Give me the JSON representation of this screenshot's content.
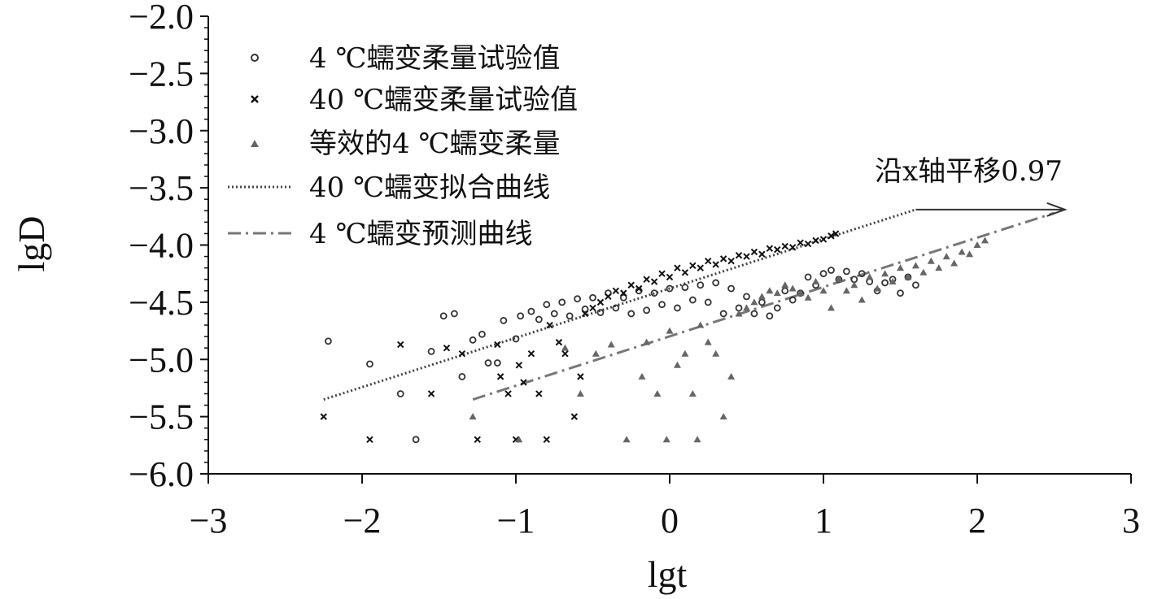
{
  "chart_data": {
    "type": "scatter",
    "xlabel": "lgt",
    "ylabel": "lgD",
    "xlim": [
      -3,
      3
    ],
    "ylim": [
      -6.0,
      -2.0
    ],
    "xticks": [
      -3,
      -2,
      -1,
      0,
      1,
      2,
      3
    ],
    "yticks": [
      -2.0,
      -2.5,
      -3.0,
      -3.5,
      -4.0,
      -4.5,
      -5.0,
      -5.5,
      -6.0
    ],
    "xtick_labels": [
      "−3",
      "−2",
      "−1",
      "0",
      "1",
      "2",
      "3"
    ],
    "ytick_labels": [
      "−2.0",
      "−2.5",
      "−3.0",
      "−3.5",
      "−4.0",
      "−4.5",
      "−5.0",
      "−5.5",
      "−6.0"
    ],
    "grid": false,
    "legend_position": "top-left",
    "legend": [
      {
        "label": "4 ℃蠕变柔量试验值",
        "marker": "circle"
      },
      {
        "label": "40 ℃蠕变柔量试验值",
        "marker": "x"
      },
      {
        "label": "等效的4 ℃蠕变柔量",
        "marker": "triangle"
      },
      {
        "label": "40 ℃蠕变拟合曲线",
        "marker": "dotted-line"
      },
      {
        "label": "4 ℃蠕变预测曲线",
        "marker": "dashdot-line"
      }
    ],
    "series": [
      {
        "name": "4 ℃蠕变柔量试验值",
        "marker": "circle",
        "color": "#333333",
        "points": [
          [
            -2.22,
            -4.84
          ],
          [
            -1.95,
            -5.04
          ],
          [
            -1.75,
            -5.3
          ],
          [
            -1.65,
            -5.7
          ],
          [
            -1.55,
            -4.93
          ],
          [
            -1.47,
            -4.62
          ],
          [
            -1.4,
            -4.6
          ],
          [
            -1.35,
            -5.15
          ],
          [
            -1.28,
            -4.83
          ],
          [
            -1.22,
            -4.78
          ],
          [
            -1.18,
            -5.03
          ],
          [
            -1.12,
            -5.03
          ],
          [
            -1.08,
            -4.66
          ],
          [
            -1.0,
            -4.82
          ],
          [
            -0.97,
            -4.62
          ],
          [
            -0.9,
            -4.58
          ],
          [
            -0.85,
            -4.65
          ],
          [
            -0.8,
            -4.52
          ],
          [
            -0.75,
            -4.6
          ],
          [
            -0.7,
            -4.5
          ],
          [
            -0.65,
            -4.62
          ],
          [
            -0.6,
            -4.47
          ],
          [
            -0.55,
            -4.56
          ],
          [
            -0.5,
            -4.46
          ],
          [
            -0.45,
            -4.59
          ],
          [
            -0.4,
            -4.42
          ],
          [
            -0.35,
            -4.55
          ],
          [
            -0.3,
            -4.46
          ],
          [
            -0.25,
            -4.6
          ],
          [
            -0.2,
            -4.4
          ],
          [
            -0.15,
            -4.57
          ],
          [
            -0.1,
            -4.42
          ],
          [
            -0.05,
            -4.52
          ],
          [
            0.0,
            -4.38
          ],
          [
            0.05,
            -4.55
          ],
          [
            0.1,
            -4.37
          ],
          [
            0.15,
            -4.48
          ],
          [
            0.2,
            -4.35
          ],
          [
            0.25,
            -4.5
          ],
          [
            0.3,
            -4.33
          ],
          [
            0.35,
            -4.6
          ],
          [
            0.4,
            -4.38
          ],
          [
            0.45,
            -4.55
          ],
          [
            0.5,
            -4.45
          ],
          [
            0.55,
            -4.6
          ],
          [
            0.6,
            -4.5
          ],
          [
            0.65,
            -4.62
          ],
          [
            0.7,
            -4.55
          ],
          [
            0.75,
            -4.4
          ],
          [
            0.8,
            -4.48
          ],
          [
            0.85,
            -4.42
          ],
          [
            0.9,
            -4.28
          ],
          [
            0.95,
            -4.35
          ],
          [
            1.0,
            -4.25
          ],
          [
            1.05,
            -4.22
          ],
          [
            1.1,
            -4.3
          ],
          [
            1.15,
            -4.23
          ],
          [
            1.2,
            -4.3
          ],
          [
            1.25,
            -4.25
          ],
          [
            1.3,
            -4.32
          ],
          [
            1.35,
            -4.4
          ],
          [
            1.4,
            -4.33
          ],
          [
            1.45,
            -4.3
          ],
          [
            1.5,
            -4.42
          ],
          [
            1.55,
            -4.28
          ],
          [
            1.6,
            -4.35
          ]
        ]
      },
      {
        "name": "40 ℃蠕变柔量试验值",
        "marker": "x",
        "color": "#111111",
        "points": [
          [
            -2.25,
            -5.5
          ],
          [
            -1.95,
            -5.7
          ],
          [
            -1.75,
            -4.87
          ],
          [
            -1.55,
            -5.3
          ],
          [
            -1.45,
            -4.9
          ],
          [
            -1.35,
            -4.95
          ],
          [
            -1.25,
            -5.7
          ],
          [
            -1.12,
            -4.87
          ],
          [
            -1.1,
            -5.15
          ],
          [
            -1.05,
            -5.3
          ],
          [
            -1.0,
            -5.7
          ],
          [
            -0.98,
            -5.05
          ],
          [
            -0.95,
            -5.2
          ],
          [
            -0.9,
            -4.95
          ],
          [
            -0.85,
            -5.3
          ],
          [
            -0.8,
            -5.7
          ],
          [
            -0.78,
            -4.7
          ],
          [
            -0.72,
            -4.85
          ],
          [
            -0.68,
            -4.95
          ],
          [
            -0.62,
            -5.5
          ],
          [
            -0.58,
            -5.15
          ],
          [
            -0.55,
            -4.6
          ],
          [
            -0.5,
            -4.55
          ],
          [
            -0.45,
            -4.5
          ],
          [
            -0.4,
            -4.45
          ],
          [
            -0.35,
            -4.4
          ],
          [
            -0.3,
            -4.42
          ],
          [
            -0.25,
            -4.35
          ],
          [
            -0.2,
            -4.38
          ],
          [
            -0.15,
            -4.3
          ],
          [
            -0.1,
            -4.32
          ],
          [
            -0.05,
            -4.25
          ],
          [
            0.0,
            -4.28
          ],
          [
            0.05,
            -4.2
          ],
          [
            0.1,
            -4.24
          ],
          [
            0.15,
            -4.18
          ],
          [
            0.2,
            -4.2
          ],
          [
            0.25,
            -4.14
          ],
          [
            0.3,
            -4.17
          ],
          [
            0.35,
            -4.12
          ],
          [
            0.4,
            -4.14
          ],
          [
            0.45,
            -4.09
          ],
          [
            0.5,
            -4.1
          ],
          [
            0.55,
            -4.06
          ],
          [
            0.6,
            -4.08
          ],
          [
            0.65,
            -4.03
          ],
          [
            0.7,
            -4.04
          ],
          [
            0.75,
            -4.01
          ],
          [
            0.8,
            -4.02
          ],
          [
            0.85,
            -3.98
          ],
          [
            0.9,
            -3.99
          ],
          [
            0.95,
            -3.96
          ],
          [
            1.0,
            -3.95
          ],
          [
            1.05,
            -3.92
          ],
          [
            1.08,
            -3.9
          ]
        ]
      },
      {
        "name": "等效的4 ℃蠕变柔量",
        "marker": "triangle",
        "color": "#666666",
        "points": [
          [
            -1.28,
            -5.5
          ],
          [
            -0.98,
            -5.7
          ],
          [
            -0.68,
            -4.9
          ],
          [
            -0.58,
            -5.3
          ],
          [
            -0.48,
            -4.95
          ],
          [
            -0.38,
            -4.87
          ],
          [
            -0.28,
            -5.7
          ],
          [
            -0.18,
            -5.15
          ],
          [
            -0.15,
            -4.85
          ],
          [
            -0.08,
            -5.3
          ],
          [
            -0.02,
            -5.7
          ],
          [
            0.0,
            -4.75
          ],
          [
            0.05,
            -5.05
          ],
          [
            0.1,
            -4.95
          ],
          [
            0.15,
            -5.3
          ],
          [
            0.18,
            -5.7
          ],
          [
            0.2,
            -4.7
          ],
          [
            0.25,
            -4.85
          ],
          [
            0.3,
            -4.95
          ],
          [
            0.35,
            -5.5
          ],
          [
            0.4,
            -5.15
          ],
          [
            0.45,
            -4.6
          ],
          [
            0.5,
            -4.55
          ],
          [
            0.55,
            -4.5
          ],
          [
            0.6,
            -4.45
          ],
          [
            0.65,
            -4.4
          ],
          [
            0.7,
            -4.42
          ],
          [
            0.75,
            -4.35
          ],
          [
            0.8,
            -4.38
          ],
          [
            0.85,
            -4.42
          ],
          [
            0.9,
            -4.46
          ],
          [
            0.95,
            -4.32
          ],
          [
            1.0,
            -4.4
          ],
          [
            1.05,
            -4.55
          ],
          [
            1.1,
            -4.3
          ],
          [
            1.15,
            -4.4
          ],
          [
            1.2,
            -4.35
          ],
          [
            1.25,
            -4.48
          ],
          [
            1.3,
            -4.28
          ],
          [
            1.35,
            -4.38
          ],
          [
            1.4,
            -4.25
          ],
          [
            1.45,
            -4.32
          ],
          [
            1.5,
            -4.2
          ],
          [
            1.55,
            -4.28
          ],
          [
            1.6,
            -4.18
          ],
          [
            1.65,
            -4.24
          ],
          [
            1.7,
            -4.14
          ],
          [
            1.75,
            -4.2
          ],
          [
            1.8,
            -4.1
          ],
          [
            1.85,
            -4.16
          ],
          [
            1.9,
            -4.06
          ],
          [
            1.95,
            -4.08
          ],
          [
            2.0,
            -4.0
          ],
          [
            2.05,
            -3.96
          ]
        ]
      }
    ],
    "lines": [
      {
        "name": "40 ℃蠕变拟合曲线",
        "style": "dotted",
        "color": "#444444",
        "x": [
          -2.25,
          1.6
        ],
        "y": [
          -5.35,
          -3.69
        ]
      },
      {
        "name": "4 ℃蠕变预测曲线",
        "style": "dashdot",
        "color": "#777777",
        "x": [
          -1.28,
          2.5
        ],
        "y": [
          -5.35,
          -3.72
        ]
      }
    ],
    "annotation": {
      "text": "沿x轴平移0.97",
      "arrow_from": [
        1.6,
        -3.69
      ],
      "arrow_to": [
        2.57,
        -3.69
      ]
    }
  }
}
